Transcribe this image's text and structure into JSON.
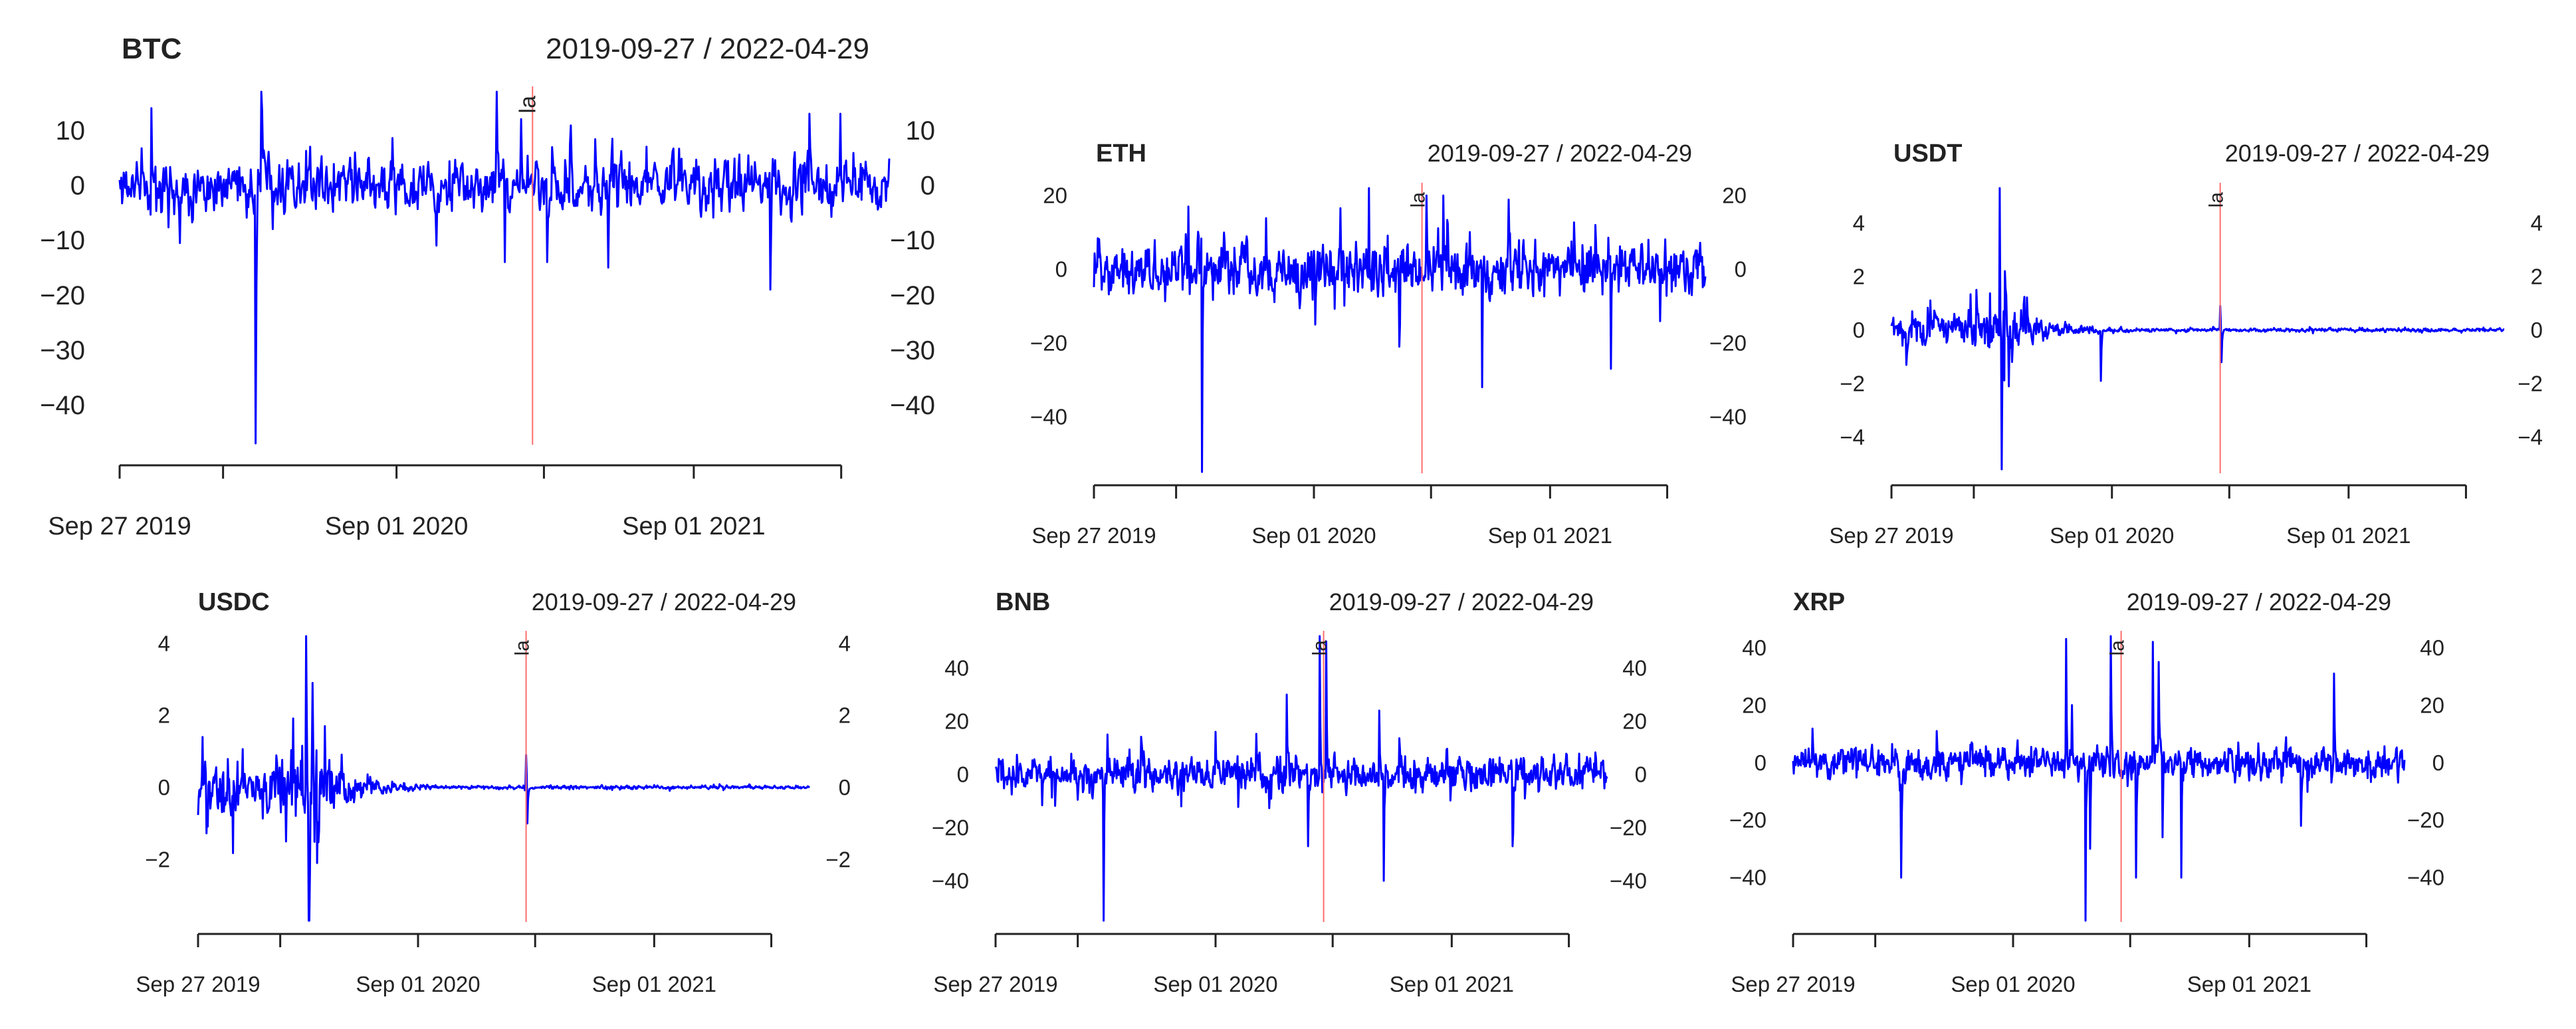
{
  "figure": {
    "series_color": "#0000FF",
    "event_line_color": "#FF6B6B",
    "axis_color": "#222222"
  },
  "chart_data": [
    {
      "type": "line",
      "title": "BTC",
      "subtitle": "2019-09-27 / 2022-04-29",
      "event_label": "la",
      "x_range": [
        "2019-09-27",
        "2022-04-29"
      ],
      "event_date": "2021-02-15",
      "ylim": [
        -47,
        17
      ],
      "yticks": [
        10,
        0,
        -10,
        -20,
        -30,
        -40
      ],
      "ytick_labels": [
        "10",
        "0",
        "−10",
        "−20",
        "−30",
        "−40"
      ],
      "xtick_dates": [
        "2019-09-27",
        "2020-02-01",
        "2020-09-01",
        "2021-03-01",
        "2021-09-01",
        "2022-03-01"
      ],
      "xtick_labels": [
        "Sep 27 2019",
        "",
        "Sep 01 2020",
        "",
        "Sep 01 2021",
        ""
      ],
      "noise": 3.2,
      "decay": 1.0,
      "seed": 11,
      "spikes": [
        [
          "2019-11-05",
          14
        ],
        [
          "2020-03-12",
          -47
        ],
        [
          "2020-03-19",
          17
        ],
        [
          "2020-04-02",
          -8
        ],
        [
          "2020-10-20",
          -11
        ],
        [
          "2021-01-02",
          17
        ],
        [
          "2021-01-12",
          -14
        ],
        [
          "2021-02-01",
          12
        ],
        [
          "2021-05-19",
          -15
        ],
        [
          "2021-03-05",
          -14
        ],
        [
          "2021-12-04",
          -19
        ],
        [
          "2022-01-21",
          13
        ],
        [
          "2022-02-28",
          13
        ]
      ]
    },
    {
      "type": "line",
      "title": "ETH",
      "subtitle": "2019-09-27 / 2022-04-29",
      "event_label": "la",
      "x_range": [
        "2019-09-27",
        "2022-04-29"
      ],
      "event_date": "2021-02-15",
      "ylim": [
        -55,
        22
      ],
      "yticks": [
        20,
        0,
        -20,
        -40
      ],
      "ytick_labels": [
        "20",
        "0",
        "−20",
        "−40"
      ],
      "xtick_dates": [
        "2019-09-27",
        "2020-02-01",
        "2020-09-01",
        "2021-03-01",
        "2021-09-01",
        "2022-03-01"
      ],
      "xtick_labels": [
        "Sep 27 2019",
        "",
        "Sep 01 2020",
        "",
        "Sep 01 2021",
        ""
      ],
      "noise": 4.5,
      "decay": 1.0,
      "seed": 23,
      "spikes": [
        [
          "2020-03-12",
          -55
        ],
        [
          "2020-02-20",
          17
        ],
        [
          "2020-09-03",
          -15
        ],
        [
          "2020-11-25",
          22
        ],
        [
          "2021-01-11",
          -21
        ],
        [
          "2021-02-22",
          20
        ],
        [
          "2021-05-19",
          -32
        ],
        [
          "2021-03-20",
          20
        ],
        [
          "2021-12-04",
          -27
        ],
        [
          "2021-11-10",
          12
        ]
      ]
    },
    {
      "type": "line",
      "title": "USDT",
      "subtitle": "2019-09-27 / 2022-04-29",
      "event_label": "la",
      "x_range": [
        "2019-09-27",
        "2022-04-29"
      ],
      "event_date": "2021-02-15",
      "ylim": [
        -5.3,
        5.3
      ],
      "yticks": [
        4,
        2,
        0,
        -2,
        -4
      ],
      "ytick_labels": [
        "4",
        "2",
        "0",
        "−2",
        "−4"
      ],
      "xtick_dates": [
        "2019-09-27",
        "2020-02-01",
        "2020-09-01",
        "2021-03-01",
        "2021-09-01",
        "2022-03-01"
      ],
      "xtick_labels": [
        "Sep 27 2019",
        "",
        "Sep 01 2020",
        "",
        "Sep 01 2021",
        ""
      ],
      "noise": 0.45,
      "decay": 0.09,
      "seed": 37,
      "spikes": [
        [
          "2020-03-12",
          5.3
        ],
        [
          "2020-03-15",
          -5.2
        ],
        [
          "2020-03-20",
          2.2
        ],
        [
          "2020-03-26",
          -2.1
        ],
        [
          "2020-02-05",
          1.5
        ],
        [
          "2019-10-20",
          -1.3
        ],
        [
          "2020-08-15",
          -1.9
        ],
        [
          "2021-02-15",
          0.9
        ],
        [
          "2021-02-17",
          -1.2
        ]
      ]
    },
    {
      "type": "line",
      "title": "USDC",
      "subtitle": "2019-09-27 / 2022-04-29",
      "event_label": "la",
      "x_range": [
        "2019-09-27",
        "2022-04-29"
      ],
      "event_date": "2021-02-15",
      "ylim": [
        -3.7,
        4.2
      ],
      "yticks": [
        4,
        2,
        0,
        -2
      ],
      "ytick_labels": [
        "4",
        "2",
        "0",
        "−2"
      ],
      "xtick_dates": [
        "2019-09-27",
        "2020-02-01",
        "2020-09-01",
        "2021-03-01",
        "2021-09-01",
        "2022-03-01"
      ],
      "xtick_labels": [
        "Sep 27 2019",
        "",
        "Sep 01 2020",
        "",
        "Sep 01 2021",
        ""
      ],
      "noise": 0.5,
      "decay": 0.06,
      "seed": 51,
      "spikes": [
        [
          "2020-03-12",
          4.2
        ],
        [
          "2020-03-16",
          -3.7
        ],
        [
          "2020-03-22",
          2.9
        ],
        [
          "2020-03-29",
          -2.1
        ],
        [
          "2020-04-10",
          1.7
        ],
        [
          "2019-10-04",
          1.4
        ],
        [
          "2020-02-10",
          -1.5
        ],
        [
          "2021-02-15",
          0.9
        ],
        [
          "2021-02-17",
          -1.0
        ]
      ]
    },
    {
      "type": "line",
      "title": "BNB",
      "subtitle": "2019-09-27 / 2022-04-29",
      "event_label": "la",
      "x_range": [
        "2019-09-27",
        "2022-04-29"
      ],
      "event_date": "2021-02-15",
      "ylim": [
        -55,
        52
      ],
      "yticks": [
        40,
        20,
        0,
        -20,
        -40
      ],
      "ytick_labels": [
        "40",
        "20",
        "0",
        "−20",
        "−40"
      ],
      "xtick_dates": [
        "2019-09-27",
        "2020-02-01",
        "2020-09-01",
        "2021-03-01",
        "2021-09-01",
        "2022-03-01"
      ],
      "xtick_labels": [
        "Sep 27 2019",
        "",
        "Sep 01 2020",
        "",
        "Sep 01 2021",
        ""
      ],
      "noise": 4.2,
      "decay": 1.0,
      "seed": 67,
      "spikes": [
        [
          "2020-03-12",
          -55
        ],
        [
          "2020-03-18",
          15
        ],
        [
          "2020-09-01",
          16
        ],
        [
          "2020-12-20",
          30
        ],
        [
          "2021-02-09",
          52
        ],
        [
          "2021-02-19",
          50
        ],
        [
          "2021-01-22",
          -27
        ],
        [
          "2021-05-19",
          -40
        ],
        [
          "2021-05-12",
          24
        ],
        [
          "2021-12-04",
          -27
        ],
        [
          "2020-07-10",
          -12
        ]
      ]
    },
    {
      "type": "line",
      "title": "XRP",
      "subtitle": "2019-09-27 / 2022-04-29",
      "event_label": "la",
      "x_range": [
        "2019-09-27",
        "2022-04-29"
      ],
      "event_date": "2021-02-15",
      "ylim": [
        -55,
        44
      ],
      "yticks": [
        40,
        20,
        0,
        -20,
        -40
      ],
      "ytick_labels": [
        "40",
        "20",
        "0",
        "−20",
        "−40"
      ],
      "xtick_dates": [
        "2019-09-27",
        "2020-02-01",
        "2020-09-01",
        "2021-03-01",
        "2021-09-01",
        "2022-03-01"
      ],
      "xtick_labels": [
        "Sep 27 2019",
        "",
        "Sep 01 2020",
        "",
        "Sep 01 2021",
        ""
      ],
      "noise": 3.6,
      "decay": 1.0,
      "seed": 83,
      "spikes": [
        [
          "2020-03-12",
          -40
        ],
        [
          "2020-11-22",
          43
        ],
        [
          "2020-12-22",
          -55
        ],
        [
          "2020-12-29",
          -30
        ],
        [
          "2021-01-30",
          44
        ],
        [
          "2021-04-05",
          42
        ],
        [
          "2021-04-14",
          35
        ],
        [
          "2021-04-20",
          -26
        ],
        [
          "2021-05-19",
          -40
        ],
        [
          "2021-03-10",
          -40
        ],
        [
          "2022-01-10",
          31
        ],
        [
          "2021-11-20",
          -22
        ],
        [
          "2020-12-01",
          20
        ]
      ]
    }
  ]
}
